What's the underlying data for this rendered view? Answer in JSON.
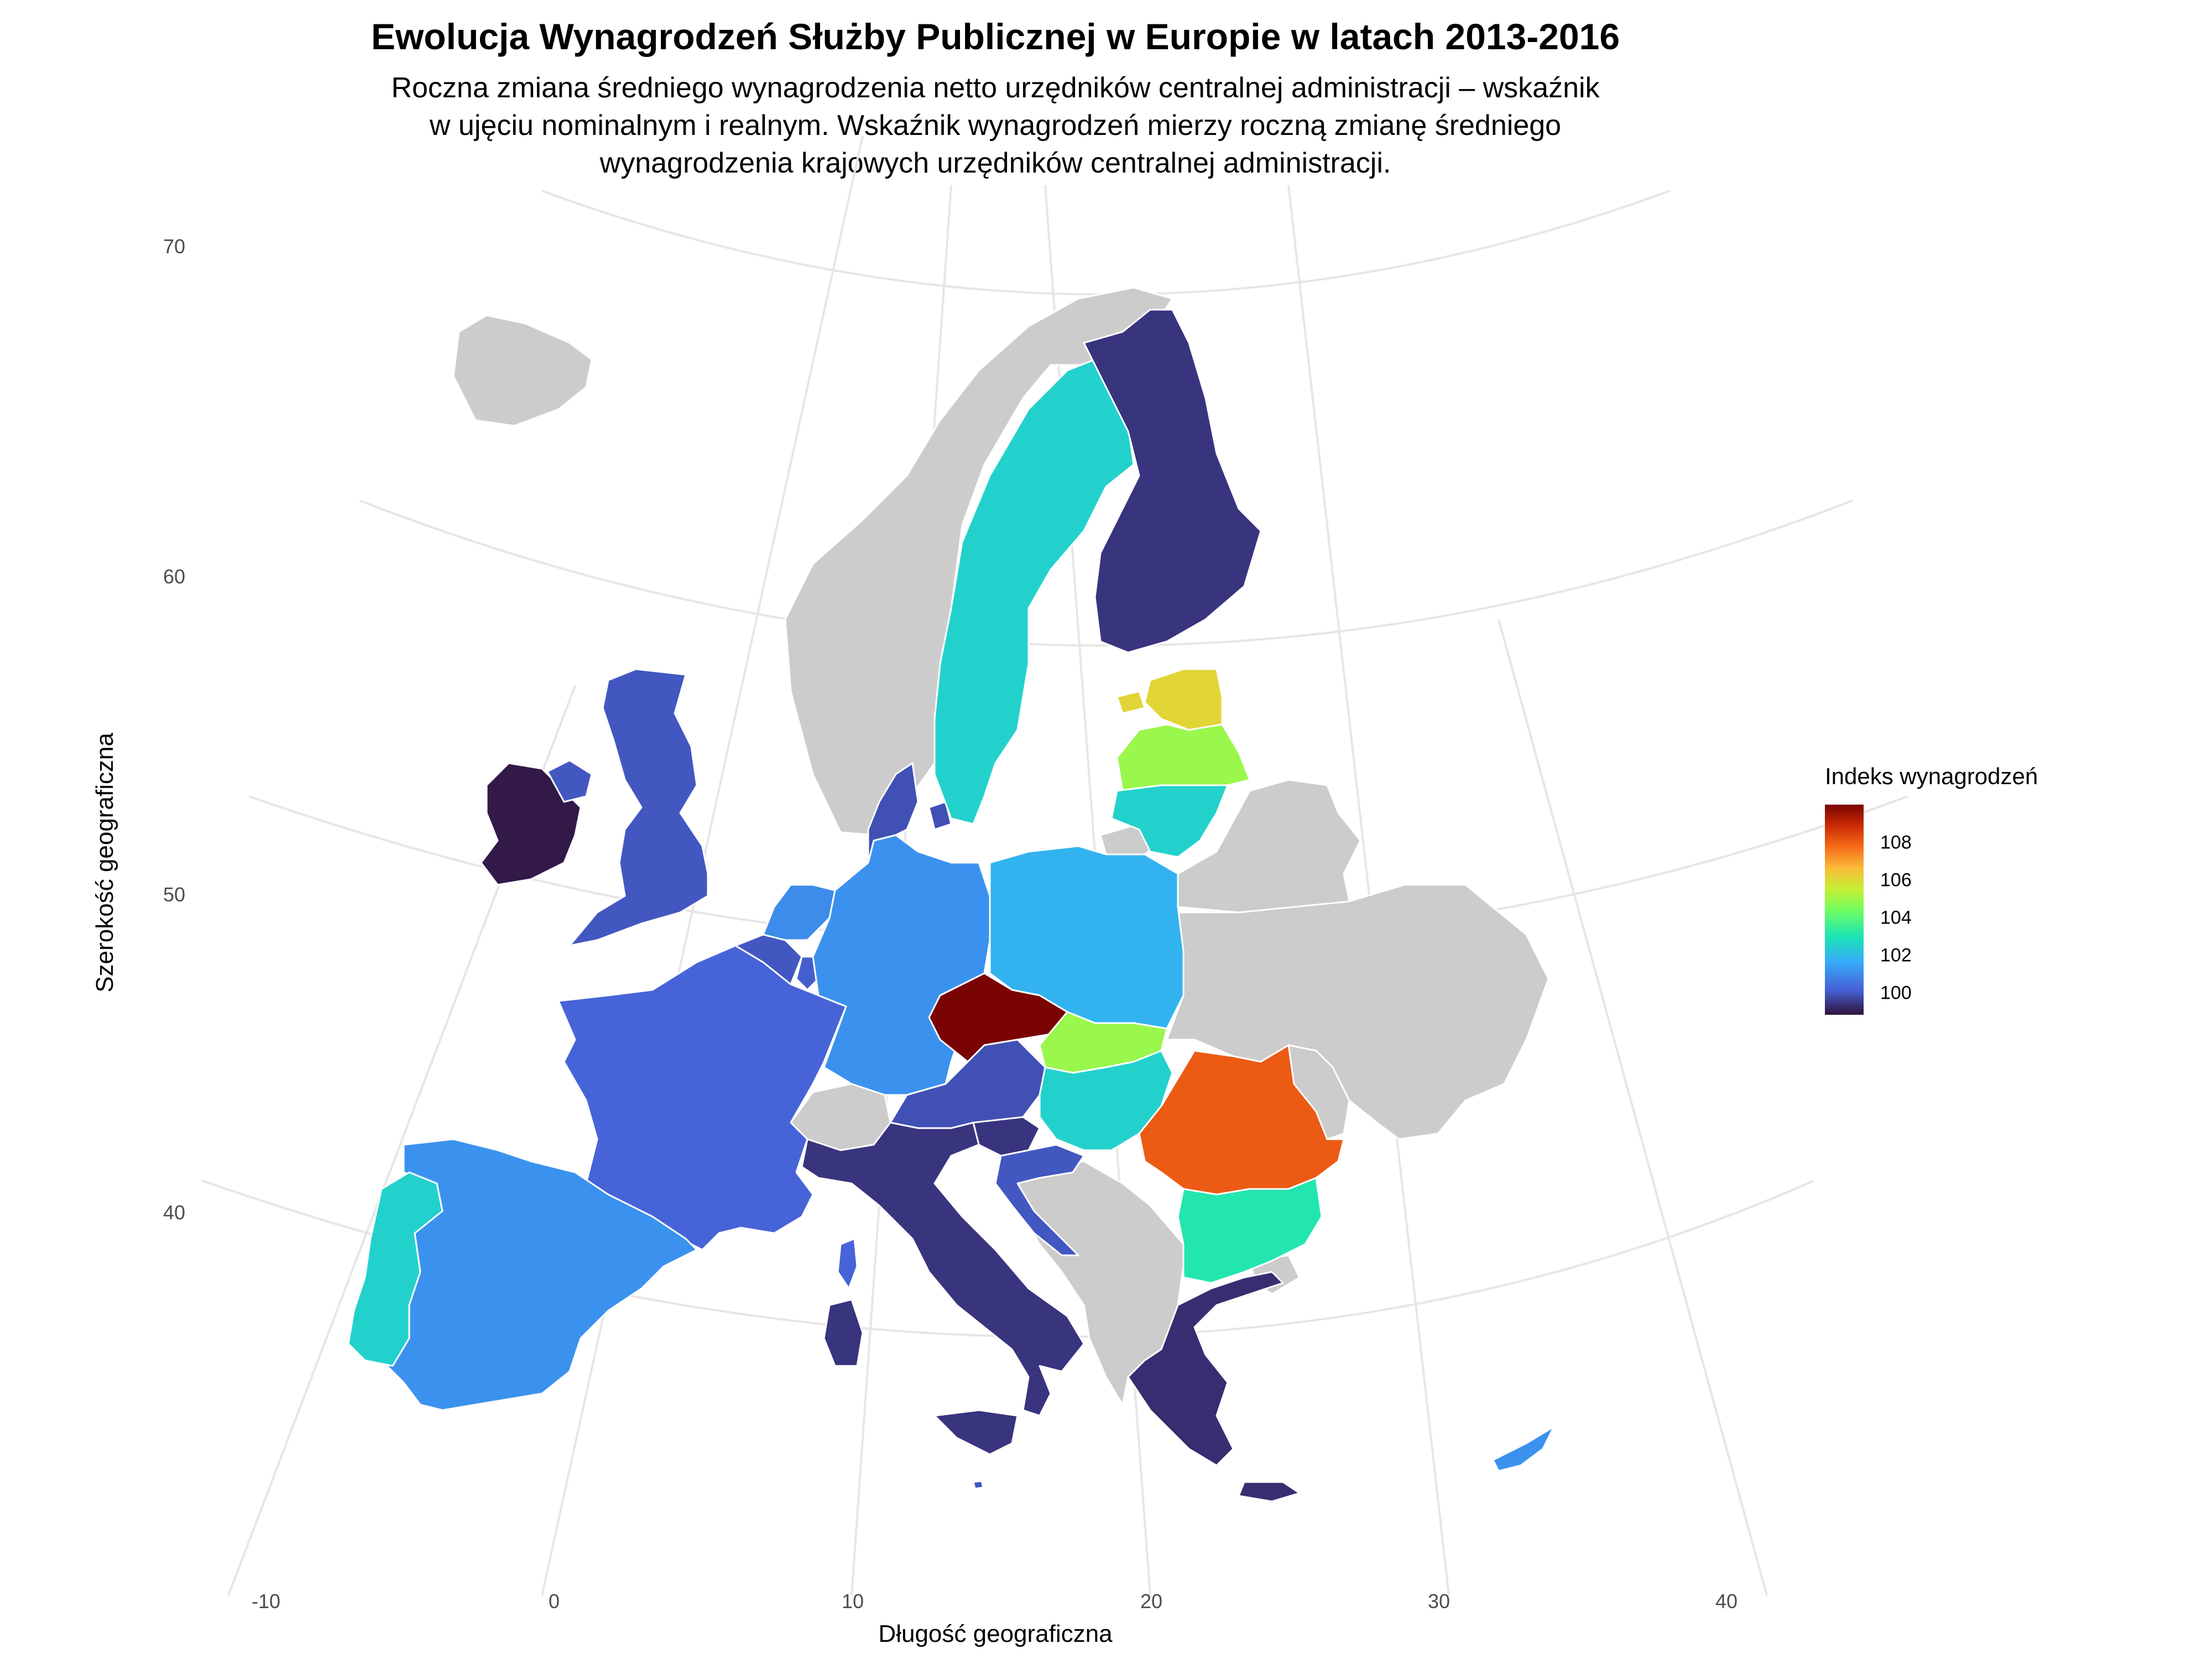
{
  "title": "Ewolucja Wynagrodzeń Służby Publicznej w Europie w latach 2013-2016",
  "subtitle": [
    "Roczna zmiana średniego wynagrodzenia netto urzędników centralnej administracji – wskaźnik",
    "w ujęciu nominalnym i realnym. Wskaźnik wynagrodzeń mierzy roczną zmianę średniego",
    "wynagrodzenia krajowych urzędników centralnej administracji."
  ],
  "axes": {
    "x_label": "Długość geograficzna",
    "y_label": "Szerokość geograficzna",
    "x_ticks": [
      "-10",
      "0",
      "10",
      "20",
      "30",
      "40"
    ],
    "y_ticks": [
      "70",
      "60",
      "50",
      "40"
    ]
  },
  "legend": {
    "title": "Indeks wynagrodzeń",
    "labels": [
      "108",
      "106",
      "104",
      "102",
      "100"
    ],
    "min": 99.3,
    "max": 109
  },
  "colors": {
    "no_data": "#cccccc",
    "grid": "#e6e6e6",
    "border": "#ffffff"
  },
  "map_data": {
    "type": "choropleth",
    "projection": "conic",
    "countries": [
      {
        "name": "Ireland",
        "value": 99.4
      },
      {
        "name": "United Kingdom",
        "value": 100.3
      },
      {
        "name": "France",
        "value": 100.5
      },
      {
        "name": "Spain",
        "value": 101.3
      },
      {
        "name": "Portugal",
        "value": 102.5
      },
      {
        "name": "Belgium",
        "value": 100.3
      },
      {
        "name": "Netherlands",
        "value": 101.2
      },
      {
        "name": "Luxembourg",
        "value": 100.4
      },
      {
        "name": "Germany",
        "value": 101.3
      },
      {
        "name": "Denmark",
        "value": 100.2
      },
      {
        "name": "Sweden",
        "value": 102.5
      },
      {
        "name": "Finland",
        "value": 99.8
      },
      {
        "name": "Estonia",
        "value": 105.6
      },
      {
        "name": "Latvia",
        "value": 104.6
      },
      {
        "name": "Lithuania",
        "value": 102.5
      },
      {
        "name": "Poland",
        "value": 101.9
      },
      {
        "name": "Czechia",
        "value": 109.0
      },
      {
        "name": "Slovakia",
        "value": 104.6
      },
      {
        "name": "Austria",
        "value": 100.2
      },
      {
        "name": "Slovenia",
        "value": 99.8
      },
      {
        "name": "Croatia",
        "value": 100.3
      },
      {
        "name": "Hungary",
        "value": 102.5
      },
      {
        "name": "Romania",
        "value": 107.3
      },
      {
        "name": "Bulgaria",
        "value": 103.0
      },
      {
        "name": "Greece",
        "value": 99.7
      },
      {
        "name": "Italy",
        "value": 99.8
      },
      {
        "name": "Malta",
        "value": 100.3
      },
      {
        "name": "Cyprus",
        "value": 101.3
      }
    ],
    "no_data_countries": [
      "Iceland",
      "Norway",
      "Switzerland",
      "Belarus",
      "Ukraine",
      "Moldova",
      "Russia",
      "Serbia",
      "Bosnia and Herzegovina",
      "Montenegro",
      "Albania",
      "North Macedonia",
      "Kosovo",
      "Turkey"
    ]
  }
}
